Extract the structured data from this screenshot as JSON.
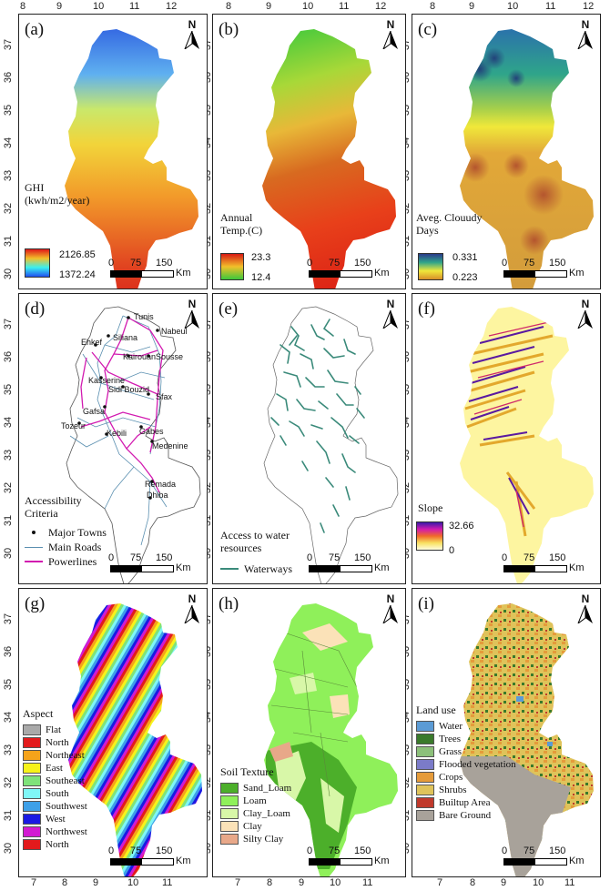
{
  "lon_ticks_top": [
    "8",
    "9",
    "10",
    "11",
    "12"
  ],
  "lon_ticks_bottom": [
    "7",
    "8",
    "9",
    "10",
    "11"
  ],
  "lat_ticks": [
    "37",
    "36",
    "35",
    "34",
    "33",
    "32",
    "31",
    "30"
  ],
  "north_letter": "N",
  "scale": {
    "n0": "0",
    "n1": "75",
    "n2": "150",
    "unit": "Km"
  },
  "panels": {
    "a": {
      "label": "(a)",
      "legend_title": "GHI",
      "legend_unit": "(kwh/m2/year)",
      "max": "2126.85",
      "min": "1372.24"
    },
    "b": {
      "label": "(b)",
      "legend_title": "Annual",
      "legend_unit": "Temp.(C)",
      "max": "23.3",
      "min": "12.4"
    },
    "c": {
      "label": "(c)",
      "legend_title": "Aveg. Clouudy",
      "legend_unit": "Days",
      "max": "0.331",
      "min": "0.223"
    },
    "d": {
      "label": "(d)",
      "legend_title": "Accessibility",
      "legend_unit": "Criteria",
      "items": [
        "Major Towns",
        "Main Roads",
        "Powerlines"
      ],
      "towns": [
        "Tunis",
        "Nabeul",
        "Siliana",
        "Ehkef",
        "Kairouan",
        "Sousse",
        "Kasserine",
        "Sidi Bouzid",
        "Sfax",
        "Gafsa",
        "Tozeur",
        "Kebili",
        "Gabes",
        "Medenine",
        "Remada",
        "Dhiba"
      ]
    },
    "e": {
      "label": "(e)",
      "legend_title": "Access to water",
      "legend_unit": "resources",
      "items": [
        "Waterways"
      ]
    },
    "f": {
      "label": "(f)",
      "legend_title": "Slope",
      "max": "32.66",
      "min": "0"
    },
    "g": {
      "label": "(g)",
      "legend_title": "Aspect",
      "items": [
        "Flat",
        "North",
        "Northeast",
        "East",
        "Southeast",
        "South",
        "Southwest",
        "West",
        "Northwest",
        "North"
      ],
      "colors": [
        "#a9a9a9",
        "#e31a1c",
        "#f5a31a",
        "#f7f31a",
        "#7fe37a",
        "#7ff7f7",
        "#3da0e8",
        "#1a1ae3",
        "#d21ad2",
        "#e31a1c"
      ]
    },
    "h": {
      "label": "(h)",
      "legend_title": "Soil Texture",
      "items": [
        "Sand_Loam",
        "Loam",
        "Clay_Loam",
        "Clay",
        "Silty Clay"
      ],
      "colors": [
        "#4caf2a",
        "#8ff05a",
        "#d8f7a8",
        "#fbe2b8",
        "#e8a889"
      ]
    },
    "i": {
      "label": "(i)",
      "legend_title": "Land use",
      "items": [
        "Water",
        "Trees",
        "Grass",
        "Flooded vegetation",
        "Crops",
        "Shrubs",
        "Builtup Area",
        "Bare Ground"
      ],
      "colors": [
        "#5b9bd5",
        "#3a7a2b",
        "#8cc07a",
        "#7b7bc9",
        "#e59b3a",
        "#dfc35a",
        "#c0392b",
        "#a8a29a"
      ]
    }
  }
}
